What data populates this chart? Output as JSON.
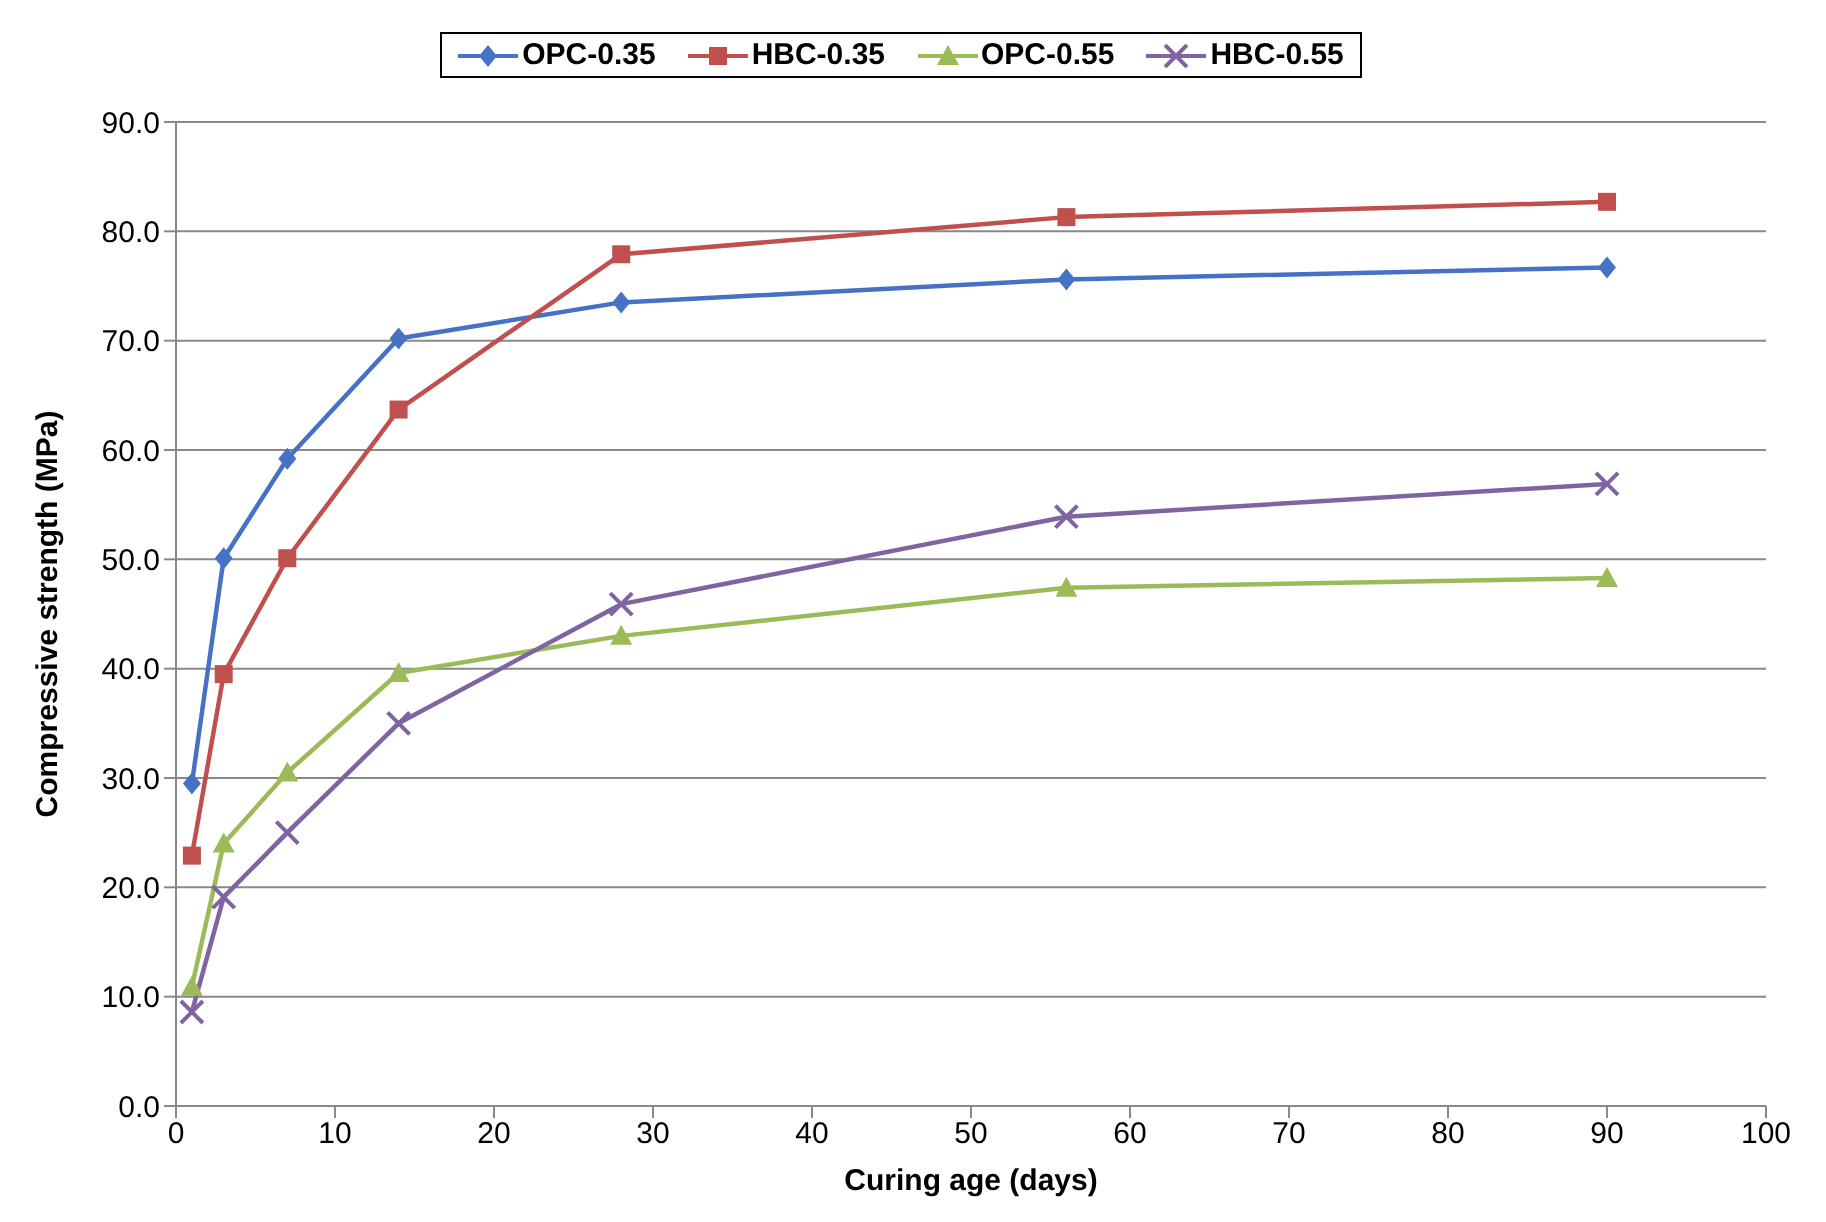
{
  "chart_data": {
    "type": "line",
    "xlabel": "Curing age (days)",
    "ylabel": "Compressive strength (MPa)",
    "x": [
      1,
      3,
      7,
      14,
      28,
      56,
      90
    ],
    "series": [
      {
        "name": "OPC-0.35",
        "color": "#4572c4",
        "marker": "diamond",
        "values": [
          29.5,
          50.1,
          59.2,
          70.2,
          73.5,
          75.6,
          76.7
        ]
      },
      {
        "name": "HBC-0.35",
        "color": "#c0504d",
        "marker": "square",
        "values": [
          22.9,
          39.5,
          50.1,
          63.7,
          77.9,
          81.3,
          82.7
        ]
      },
      {
        "name": "OPC-0.55",
        "color": "#9bbb59",
        "marker": "triangle",
        "values": [
          10.9,
          24.0,
          30.5,
          39.6,
          43.0,
          47.4,
          48.3
        ]
      },
      {
        "name": "HBC-0.55",
        "color": "#8064a2",
        "marker": "cross",
        "values": [
          8.6,
          19.1,
          25.0,
          35.0,
          45.9,
          53.9,
          56.9
        ]
      }
    ],
    "xlim": [
      0,
      100
    ],
    "xticks": [
      0,
      10,
      20,
      30,
      40,
      50,
      60,
      70,
      80,
      90,
      100
    ],
    "ylim": [
      0,
      90
    ],
    "yticks": [
      {
        "value": 0,
        "label": "0.0"
      },
      {
        "value": 10,
        "label": "10.0"
      },
      {
        "value": 20,
        "label": "20.0"
      },
      {
        "value": 30,
        "label": "30.0"
      },
      {
        "value": 40,
        "label": "40.0"
      },
      {
        "value": 50,
        "label": "50.0"
      },
      {
        "value": 60,
        "label": "60.0"
      },
      {
        "value": 70,
        "label": "70.0"
      },
      {
        "value": 80,
        "label": "80.0"
      },
      {
        "value": 90,
        "label": "90.0"
      }
    ],
    "grid": "y",
    "legend": "top",
    "line_style": "solid"
  }
}
